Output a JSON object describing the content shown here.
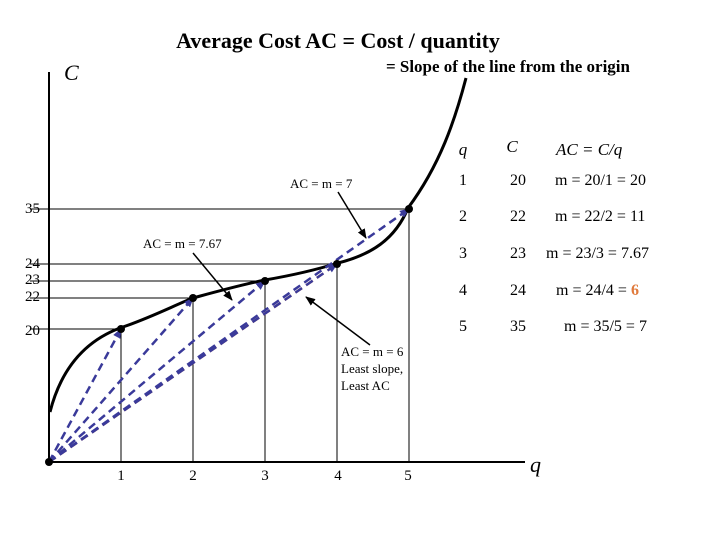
{
  "chart_data": {
    "type": "line",
    "title": "Average Cost AC = Cost / quantity",
    "subtitle": "= Slope of the line from the origin",
    "xlabel": "q",
    "ylabel": "C",
    "x_ticks": [
      "1",
      "2",
      "3",
      "4",
      "5"
    ],
    "y_ticks": [
      "20",
      "22",
      "23",
      "24",
      "35"
    ],
    "points": [
      {
        "q": 1,
        "C": 20
      },
      {
        "q": 2,
        "C": 22
      },
      {
        "q": 3,
        "C": 23
      },
      {
        "q": 4,
        "C": 24
      },
      {
        "q": 5,
        "C": 35
      }
    ],
    "min_ac_q": 4,
    "annotations": [
      {
        "id": "ac7",
        "text": "AC = m = 7",
        "target_q": 5
      },
      {
        "id": "ac767",
        "text": "AC = m = 7.67",
        "target_q": 3
      },
      {
        "id": "ac6",
        "lines": [
          "AC = m = 6",
          "Least slope,",
          "Least AC"
        ],
        "target_q": 4
      }
    ],
    "table": {
      "headers": [
        "q",
        "C",
        "AC = C/q"
      ],
      "rows": [
        {
          "q": "1",
          "C": "20",
          "ac": "m = 20/1 = 20"
        },
        {
          "q": "2",
          "C": "22",
          "ac": "m = 22/2 = 11"
        },
        {
          "q": "3",
          "C": "23",
          "ac": "m = 23/3 = 7.67"
        },
        {
          "q": "4",
          "C": "24",
          "ac_prefix": "m = 24/4 = ",
          "ac_highlight": "6"
        },
        {
          "q": "5",
          "C": "35",
          "ac": "m = 35/5 = 7"
        }
      ]
    },
    "colors": {
      "curve": "#000000",
      "ray": "#3a3a9a",
      "min_ray": "#e07a3c",
      "highlight": "#e07a3c"
    }
  }
}
